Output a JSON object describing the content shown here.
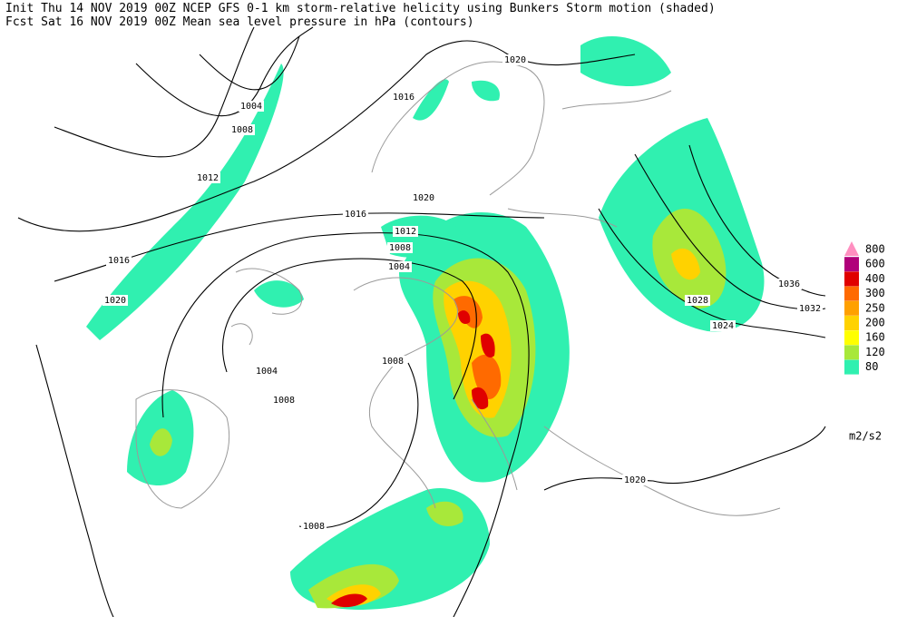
{
  "header": {
    "line1": "Init  Thu 14 NOV 2019 00Z   NCEP GFS 0-1 km storm-relative helicity using Bunkers Storm motion (shaded)",
    "line2": "Fcst Sat 16 NOV 2019 00Z   Mean sea level pressure in hPa (contours)"
  },
  "legend": {
    "unit": "m2/s2",
    "levels": [
      {
        "value": 800,
        "color": "#ff8fc0"
      },
      {
        "value": 600,
        "color": "#b0007a"
      },
      {
        "value": 400,
        "color": "#e00000"
      },
      {
        "value": 300,
        "color": "#ff6a00"
      },
      {
        "value": 250,
        "color": "#ffa000"
      },
      {
        "value": 200,
        "color": "#ffd200"
      },
      {
        "value": 160,
        "color": "#ffff00"
      },
      {
        "value": 120,
        "color": "#a8e83a"
      },
      {
        "value": 80,
        "color": "#30f0b0"
      }
    ]
  },
  "contour_labels": [
    1020,
    1016,
    1004,
    1008,
    1012,
    1020,
    1016,
    1012,
    1008,
    1004,
    1016,
    1020,
    1004,
    1008,
    1008,
    1008,
    1036,
    1032,
    1028,
    1024,
    1020
  ]
}
